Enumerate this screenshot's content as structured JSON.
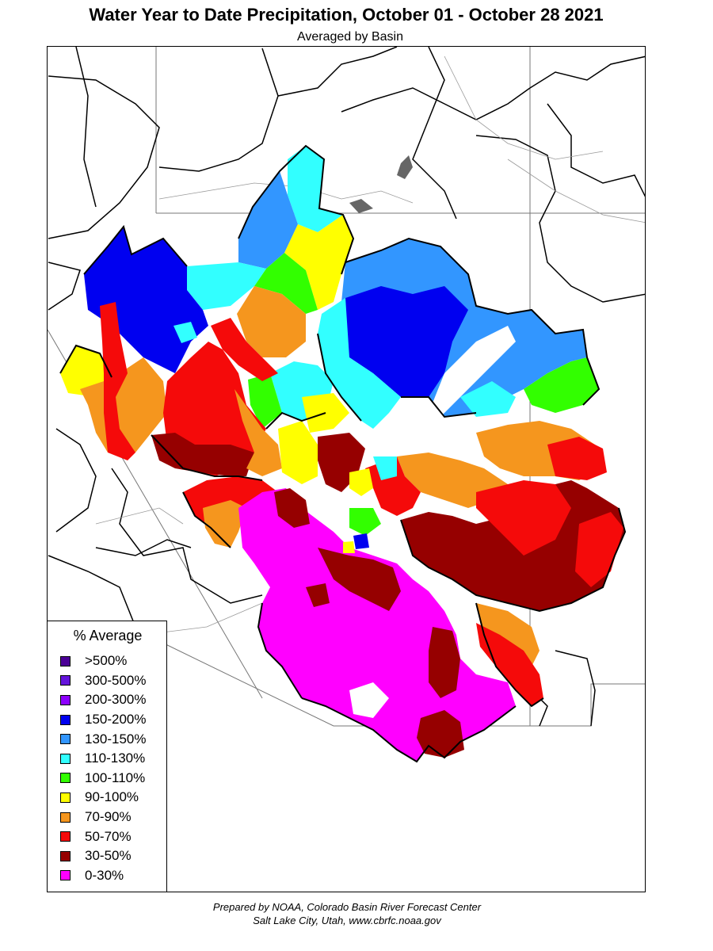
{
  "header": {
    "title": "Water Year to Date Precipitation, October 01  - October 28 2021",
    "subtitle": "Averaged by Basin"
  },
  "legend": {
    "title": "% Average",
    "items": [
      {
        "label": ">500%",
        "color": "#4b0096"
      },
      {
        "label": "300-500%",
        "color": "#6414dc"
      },
      {
        "label": "200-300%",
        "color": "#8c00ff"
      },
      {
        "label": "150-200%",
        "color": "#0000f0"
      },
      {
        "label": "130-150%",
        "color": "#3296ff"
      },
      {
        "label": "110-130%",
        "color": "#32ffff"
      },
      {
        "label": "100-110%",
        "color": "#32ff00"
      },
      {
        "label": "90-100%",
        "color": "#ffff00"
      },
      {
        "label": "70-90%",
        "color": "#f5961e"
      },
      {
        "label": "50-70%",
        "color": "#f50a0a"
      },
      {
        "label": "30-50%",
        "color": "#960000"
      },
      {
        "label": "0-30%",
        "color": "#ff00ff"
      }
    ]
  },
  "footer": {
    "line1": "Prepared by NOAA, Colorado Basin River Forecast Center",
    "line2": "Salt Lake City, Utah, www.cbrfc.noaa.gov"
  }
}
